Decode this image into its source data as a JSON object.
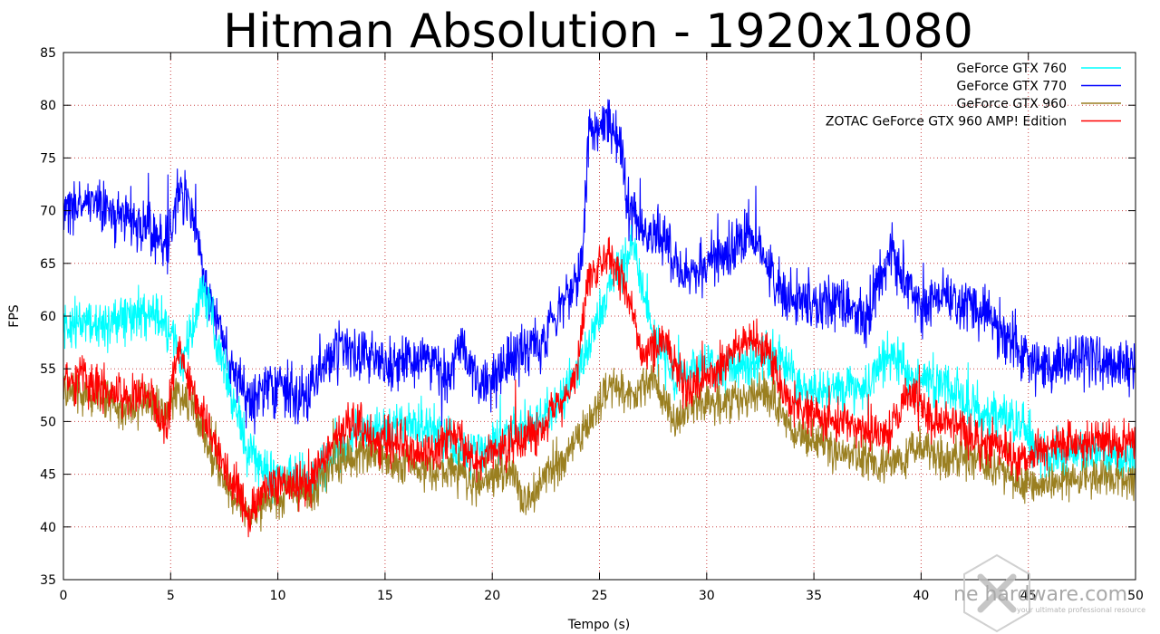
{
  "chart_data": {
    "type": "line",
    "title": "Hitman Absolution - 1920x1080",
    "xlabel": "Tempo (s)",
    "ylabel": "FPS",
    "xlim": [
      0,
      50
    ],
    "ylim": [
      35,
      85
    ],
    "xticks": [
      0,
      5,
      10,
      15,
      20,
      25,
      30,
      35,
      40,
      45,
      50
    ],
    "yticks": [
      35,
      40,
      45,
      50,
      55,
      60,
      65,
      70,
      75,
      80,
      85
    ],
    "grid": true,
    "legend_position": "top-right",
    "series": [
      {
        "name": "GeForce GTX 760",
        "color": "#00ffff",
        "noise": 2.2,
        "x": [
          0,
          2,
          4,
          5,
          5.5,
          6.5,
          7.5,
          8.5,
          9.5,
          10.5,
          11.5,
          12.5,
          13.5,
          14.5,
          16,
          17.5,
          18.5,
          19.5,
          21,
          22.5,
          23.5,
          24.5,
          25.5,
          26.5,
          27.5,
          28.5,
          29.5,
          30.5,
          31.5,
          32.5,
          33.5,
          34.5,
          35.5,
          36.5,
          37.5,
          38.5,
          39.5,
          40.5,
          41.5,
          42.5,
          43.5,
          44.5,
          45.5,
          46.5,
          47.5,
          48.5,
          50
        ],
        "y": [
          59,
          59.5,
          60,
          59,
          55,
          63,
          55,
          48,
          45,
          45,
          44,
          46,
          48.5,
          49,
          50,
          49,
          47,
          47,
          49,
          50,
          53,
          57,
          63,
          67,
          58,
          54,
          55,
          55,
          55,
          56,
          56,
          53,
          53,
          53,
          53,
          57,
          54,
          54,
          53,
          51,
          50,
          50,
          47,
          47,
          47,
          47,
          46
        ]
      },
      {
        "name": "GeForce GTX 770",
        "color": "#0000ff",
        "noise": 2.6,
        "x": [
          0,
          1,
          2,
          3,
          4,
          4.8,
          5.4,
          6,
          6.5,
          7.5,
          8.5,
          9.5,
          10.5,
          11.3,
          12,
          13,
          14,
          15,
          16,
          17,
          18,
          18.5,
          19.5,
          20.5,
          21.5,
          22.5,
          23.5,
          24.2,
          24.5,
          25.5,
          26,
          26.3,
          27,
          28,
          29,
          30,
          31,
          32,
          33,
          33.5,
          34.5,
          35.5,
          36.5,
          37.5,
          38,
          38.5,
          39.5,
          40,
          41,
          42,
          43,
          44,
          45,
          46,
          47,
          48,
          49,
          50
        ],
        "y": [
          70,
          71,
          70.5,
          69,
          68,
          66,
          72,
          70,
          64,
          57,
          52,
          53,
          53,
          52,
          55,
          57,
          56,
          55,
          56,
          56,
          54,
          58,
          53,
          55,
          57,
          58,
          62,
          65,
          78,
          78,
          76,
          70,
          68,
          67,
          64,
          65,
          66,
          68,
          65,
          62,
          61,
          61,
          61,
          60,
          63,
          66,
          63,
          60,
          62,
          61,
          60,
          58,
          56,
          55,
          56,
          56,
          55,
          55
        ]
      },
      {
        "name": "GeForce GTX 960",
        "color": "#9a7f20",
        "noise": 1.9,
        "x": [
          0,
          1,
          2,
          3,
          4,
          4.8,
          5.2,
          6,
          7,
          8,
          8.6,
          9.5,
          10.5,
          11.5,
          12.5,
          13.5,
          14.5,
          15.5,
          16.5,
          17.5,
          18.5,
          19,
          20,
          21,
          21.5,
          22.5,
          23.5,
          24.5,
          25.5,
          26.5,
          27.5,
          28.5,
          29.5,
          30.5,
          31.5,
          32.5,
          33.5,
          34,
          35,
          36,
          37,
          38,
          39,
          40,
          41,
          42,
          43,
          44,
          45,
          46,
          47,
          48,
          49,
          50
        ],
        "y": [
          53,
          52.5,
          52,
          51,
          52,
          50,
          53,
          52,
          46,
          43,
          41,
          42.5,
          43,
          43,
          46,
          47,
          47,
          46,
          46,
          45,
          46,
          44,
          45,
          45,
          42,
          45,
          47,
          50,
          54,
          52,
          54,
          50,
          52,
          52,
          52,
          53,
          51,
          49,
          48,
          47,
          47,
          46,
          46.5,
          48,
          46,
          47,
          46,
          45,
          44,
          44,
          44.5,
          44.5,
          44.5,
          44.5
        ]
      },
      {
        "name": "ZOTAC GeForce GTX 960 AMP! Edition",
        "color": "#ff0000",
        "noise": 2.0,
        "x": [
          0,
          1,
          2,
          3,
          4,
          4.8,
          5.3,
          6,
          7,
          8,
          8.7,
          9.5,
          10.5,
          11.5,
          12.5,
          13.5,
          14.5,
          15.5,
          16.5,
          17.5,
          18.5,
          19,
          20,
          21,
          22,
          23,
          24,
          24.5,
          25.5,
          26.2,
          27,
          28,
          29,
          30,
          31,
          32,
          32.8,
          33.5,
          34.5,
          35.5,
          36.5,
          37.5,
          38.5,
          39.5,
          40.5,
          41.5,
          42.5,
          43.5,
          44.5,
          45.5,
          46.5,
          47.5,
          48.5,
          50
        ],
        "y": [
          54,
          54,
          53,
          52,
          53,
          49,
          57,
          53,
          48,
          44,
          41,
          44,
          44,
          44,
          48,
          50,
          48,
          48,
          47,
          47,
          49,
          46,
          47,
          48,
          49,
          51,
          55,
          64,
          66,
          63,
          56,
          58,
          53,
          54,
          56,
          58,
          57,
          53,
          51,
          50,
          50,
          49,
          49,
          53,
          50,
          50,
          48,
          48,
          46,
          47.5,
          48,
          48,
          48,
          48
        ]
      }
    ]
  },
  "watermark": {
    "logo_text": "ne  hardware.com",
    "tagline": "your ultimate professional resource"
  }
}
